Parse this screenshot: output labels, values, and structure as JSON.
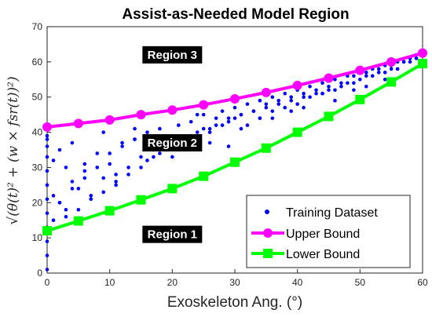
{
  "chart_data": {
    "type": "scatter",
    "title": "Assist-as-Needed Model Region",
    "xlabel": "Exoskeleton Ang. (°)",
    "ylabel": "√(θ(t)² + (w × fsr(t))²)",
    "xlim": [
      0,
      60
    ],
    "ylim": [
      0,
      70
    ],
    "x_ticks": [
      0,
      10,
      20,
      30,
      40,
      50,
      60
    ],
    "y_ticks": [
      0,
      10,
      20,
      30,
      40,
      50,
      60,
      70
    ],
    "grid": false,
    "legend_position": "bottom-right",
    "series": [
      {
        "name": "Training Dataset",
        "kind": "scatter",
        "color": "#0000ff",
        "note_points": "dense scatter band between lower and upper bounds",
        "x": [
          0,
          0,
          0,
          0,
          0,
          0,
          0,
          0,
          0,
          0,
          0,
          0,
          1,
          1,
          2,
          2,
          3,
          3,
          4,
          5,
          6,
          7,
          8,
          9,
          10,
          11,
          12,
          13,
          14,
          15,
          16,
          17,
          18,
          19,
          20,
          21,
          22,
          23,
          24,
          25,
          26,
          27,
          28,
          29,
          30,
          31,
          32,
          33,
          34,
          35,
          36,
          37,
          38,
          39,
          40,
          41,
          42,
          43,
          44,
          45,
          46,
          47,
          48,
          49,
          50,
          51,
          52,
          53,
          54,
          55,
          56,
          57,
          58,
          59,
          60,
          3,
          5,
          7,
          9,
          11,
          13,
          15,
          17,
          19,
          21,
          23,
          25,
          27,
          29,
          31,
          33,
          35,
          37,
          39,
          41,
          43,
          45,
          47,
          49,
          51,
          53,
          55,
          57,
          59,
          2,
          4,
          6,
          8,
          10,
          12,
          14,
          16,
          18,
          20,
          22,
          24,
          26,
          28,
          30,
          32,
          34,
          36,
          38,
          40,
          42,
          44,
          46,
          48,
          50,
          52,
          54,
          56,
          58,
          1,
          6,
          11,
          16,
          21,
          26,
          31,
          36,
          41,
          46,
          51,
          56,
          4,
          9,
          14,
          19,
          24,
          29,
          34,
          39,
          44,
          49,
          54,
          59
        ],
        "y": [
          1,
          5,
          9,
          13,
          17,
          21,
          25,
          29,
          33,
          36,
          38,
          39,
          15,
          32,
          20,
          35,
          18,
          30,
          26,
          24,
          29,
          22,
          34,
          27,
          31,
          25,
          36,
          30,
          38,
          33,
          40,
          35,
          41,
          37,
          39,
          42,
          36,
          43,
          40,
          45,
          41,
          44,
          46,
          43,
          47,
          45,
          48,
          46,
          49,
          47,
          50,
          48,
          51,
          49,
          52,
          50,
          53,
          51,
          54,
          52,
          55,
          53,
          56,
          54,
          57,
          56,
          58,
          57,
          59,
          58,
          60,
          60,
          61,
          62,
          63,
          16,
          18,
          21,
          23,
          26,
          28,
          30,
          33,
          35,
          37,
          39,
          41,
          42,
          44,
          45,
          46,
          48,
          49,
          50,
          51,
          52,
          53,
          54,
          56,
          57,
          58,
          59,
          60,
          61,
          20,
          24,
          27,
          30,
          34,
          37,
          38,
          32,
          34,
          33,
          36,
          38,
          40,
          42,
          44,
          42,
          44,
          46,
          47,
          48,
          50,
          51,
          52,
          54,
          55,
          56,
          57,
          58,
          60,
          22,
          31,
          28,
          39,
          35,
          37,
          41,
          44,
          47,
          49,
          53,
          58,
          37,
          40,
          41,
          38,
          45,
          36,
          44,
          46,
          51,
          52,
          55,
          61
        ]
      },
      {
        "name": "Upper Bound",
        "kind": "line",
        "color": "#ff00ff",
        "x": [
          0,
          5,
          10,
          15,
          20,
          25,
          30,
          35,
          40,
          45,
          50,
          55,
          60
        ],
        "y": [
          41.5,
          42.5,
          43.5,
          45.0,
          46.3,
          47.8,
          49.5,
          51.3,
          53.3,
          55.4,
          57.6,
          60.0,
          62.5
        ]
      },
      {
        "name": "Lower Bound",
        "kind": "line",
        "color": "#00ff00",
        "x": [
          0,
          5,
          10,
          15,
          20,
          25,
          30,
          35,
          40,
          45,
          50,
          55,
          60
        ],
        "y": [
          12.0,
          14.8,
          17.7,
          20.8,
          24.0,
          27.5,
          31.5,
          35.5,
          40.0,
          44.5,
          49.3,
          54.3,
          59.5
        ]
      }
    ],
    "annotations": [
      {
        "text": "Region 3",
        "x": 20,
        "y": 62
      },
      {
        "text": "Region 2",
        "x": 20,
        "y": 37
      },
      {
        "text": "Region 1",
        "x": 20,
        "y": 11
      }
    ]
  }
}
